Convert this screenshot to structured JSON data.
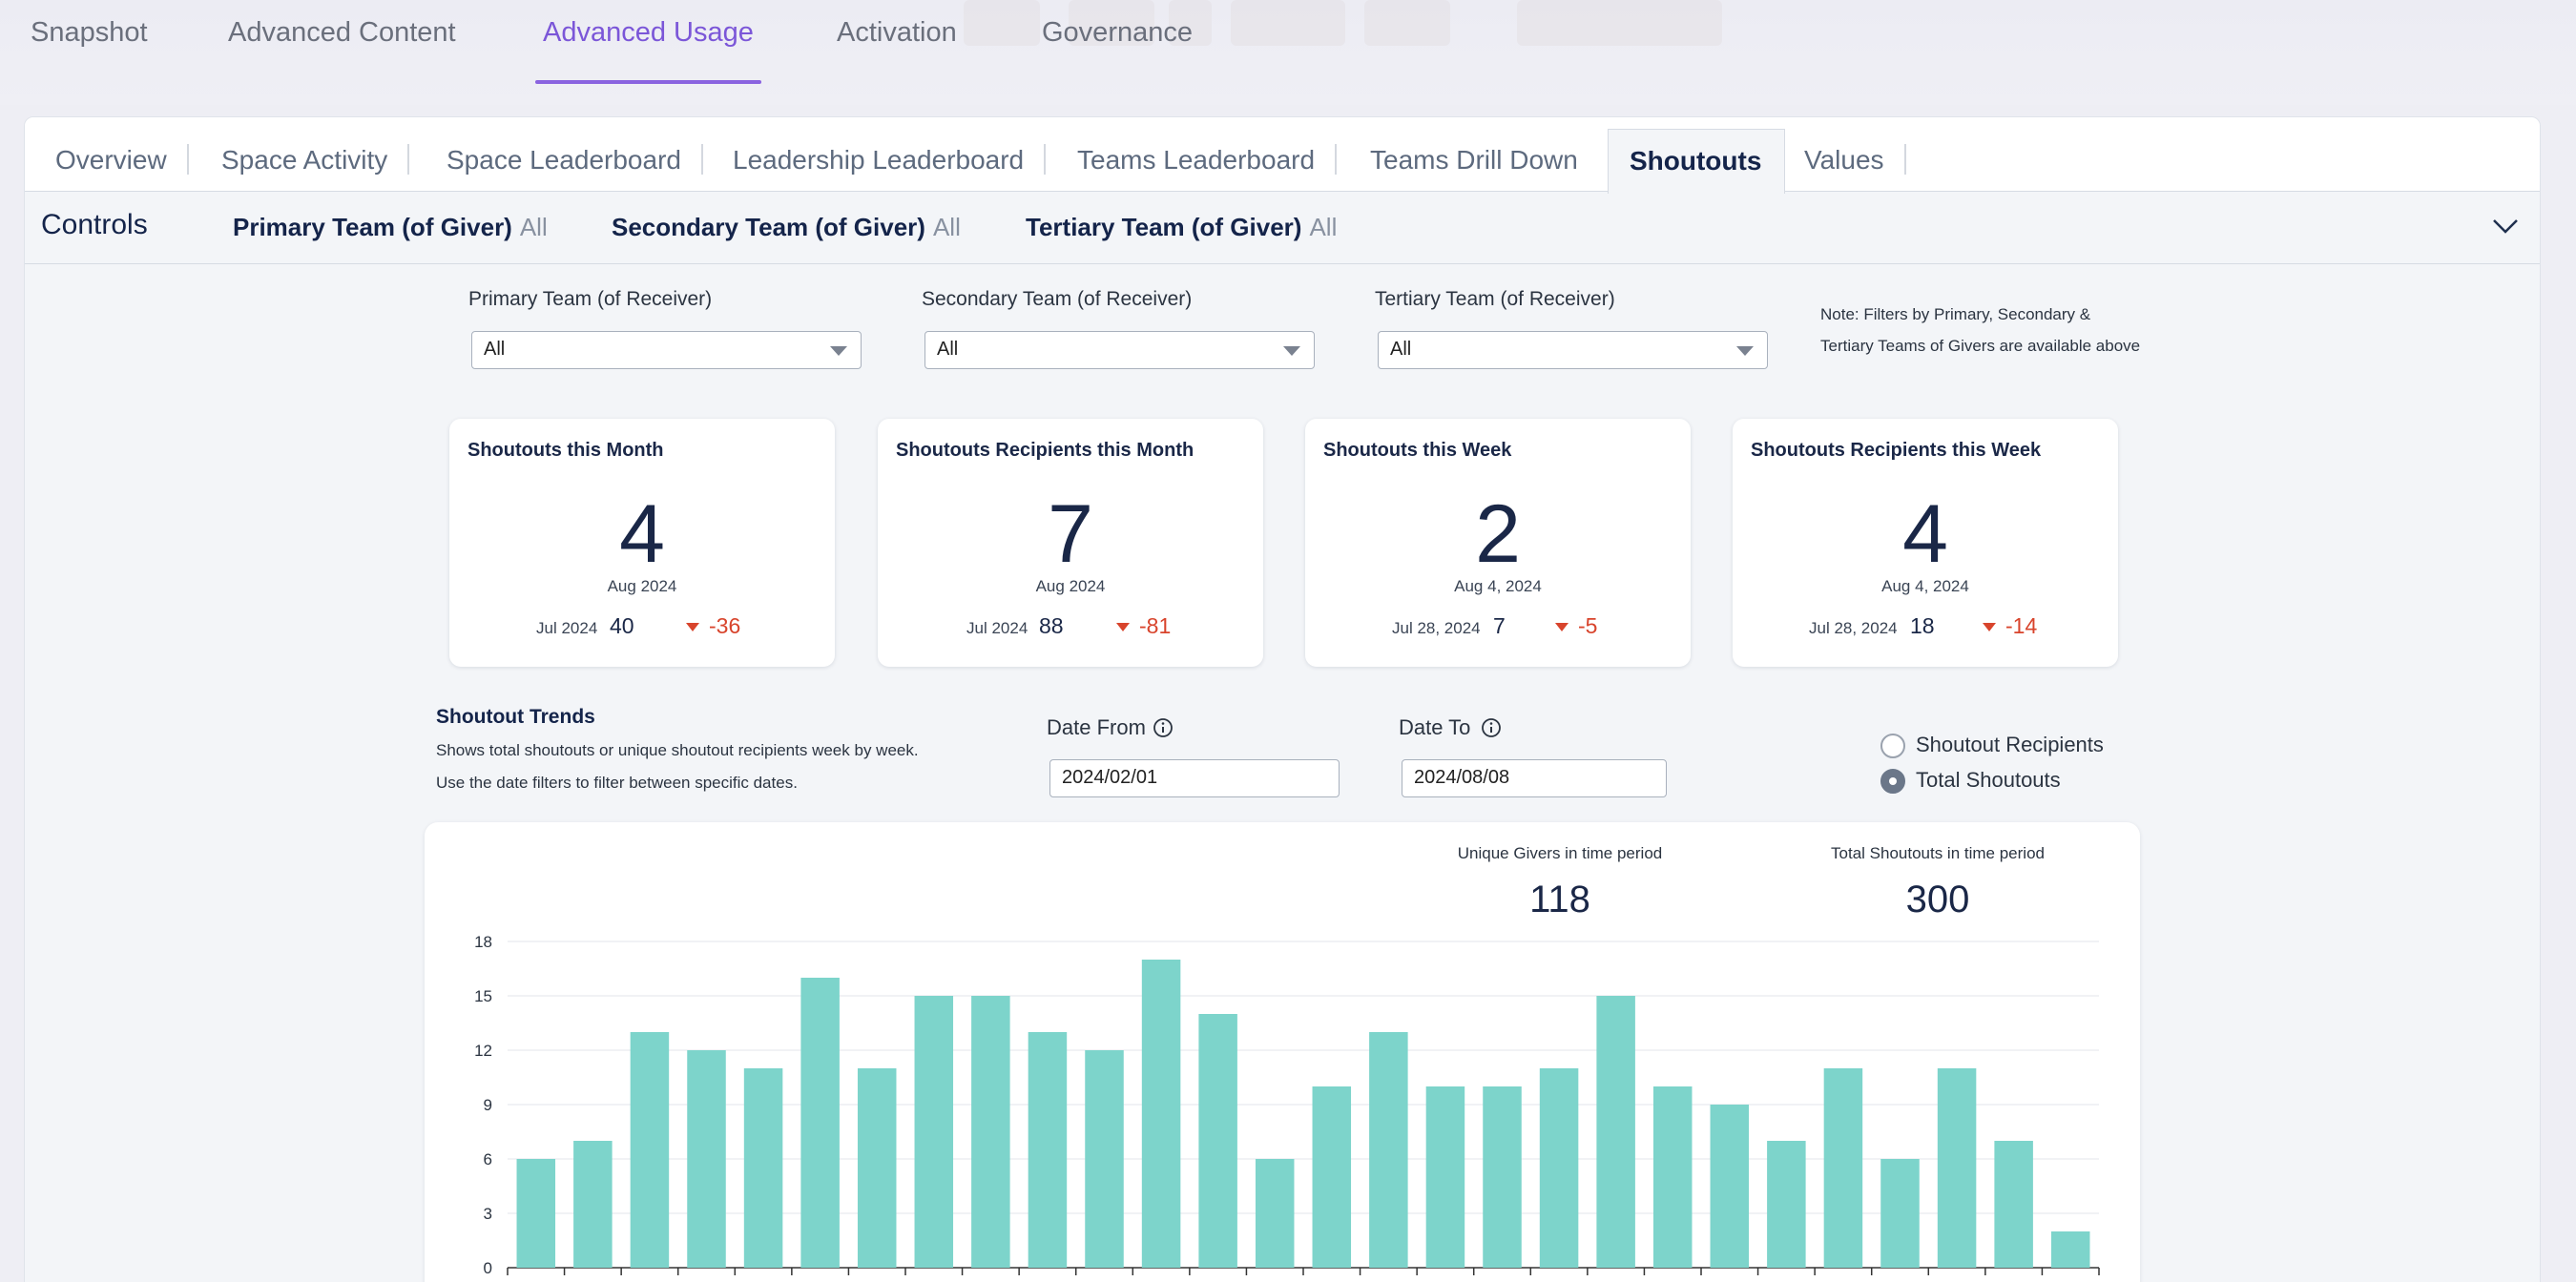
{
  "top_nav": {
    "tabs": [
      "Snapshot",
      "Advanced Content",
      "Advanced Usage",
      "Activation",
      "Governance"
    ],
    "active": "Advanced Usage"
  },
  "sub_tabs": {
    "tabs": [
      "Overview",
      "Space Activity",
      "Space Leaderboard",
      "Leadership Leaderboard",
      "Teams Leaderboard",
      "Teams Drill Down",
      "Shoutouts",
      "Values"
    ],
    "active": "Shoutouts"
  },
  "controls": {
    "title": "Controls",
    "filters": [
      {
        "label": "Primary Team (of Giver)",
        "value": "All"
      },
      {
        "label": "Secondary Team (of Giver)",
        "value": "All"
      },
      {
        "label": "Tertiary Team (of Giver)",
        "value": "All"
      }
    ]
  },
  "receiver_filters": [
    {
      "label": "Primary Team (of Receiver)",
      "value": "All"
    },
    {
      "label": "Secondary Team (of Receiver)",
      "value": "All"
    },
    {
      "label": "Tertiary Team (of Receiver)",
      "value": "All"
    }
  ],
  "note": {
    "line1": "Note: Filters by Primary, Secondary &",
    "line2": "Tertiary Teams of Givers are available above"
  },
  "kpis": [
    {
      "title": "Shoutouts this Month",
      "value": "4",
      "period": "Aug 2024",
      "prev_label": "Jul 2024",
      "prev_value": "40",
      "delta": "-36"
    },
    {
      "title": "Shoutouts Recipients this Month",
      "value": "7",
      "period": "Aug 2024",
      "prev_label": "Jul 2024",
      "prev_value": "88",
      "delta": "-81"
    },
    {
      "title": "Shoutouts this Week",
      "value": "2",
      "period": "Aug 4, 2024",
      "prev_label": "Jul 28, 2024",
      "prev_value": "7",
      "delta": "-5"
    },
    {
      "title": "Shoutouts Recipients this Week",
      "value": "4",
      "period": "Aug 4, 2024",
      "prev_label": "Jul 28, 2024",
      "prev_value": "18",
      "delta": "-14"
    }
  ],
  "trends": {
    "title": "Shoutout Trends",
    "desc_line1": "Shows total shoutouts or unique shoutout recipients week by week.",
    "desc_line2": "Use the date filters to filter between specific dates.",
    "date_from_label": "Date From",
    "date_from": "2024/02/01",
    "date_to_label": "Date To",
    "date_to": "2024/08/08",
    "radio_options": [
      "Shoutout Recipients",
      "Total Shoutouts"
    ],
    "radio_selected": "Total Shoutouts"
  },
  "summary_metrics": [
    {
      "label": "Unique Givers in time period",
      "value": "118"
    },
    {
      "label": "Total Shoutouts in time period",
      "value": "300"
    }
  ],
  "colors": {
    "accent": "#8a63e0",
    "bar": "#7dd4cb",
    "negative": "#d8442c",
    "navy": "#1a2747"
  },
  "chart_data": {
    "type": "bar",
    "title": "",
    "xlabel": "",
    "ylabel": "",
    "ylim": [
      0,
      18
    ],
    "y_ticks": [
      0,
      3,
      6,
      9,
      12,
      15,
      18
    ],
    "values": [
      6,
      7,
      13,
      12,
      11,
      16,
      11,
      15,
      15,
      13,
      12,
      17,
      14,
      6,
      10,
      13,
      10,
      10,
      11,
      15,
      10,
      9,
      7,
      11,
      6,
      11,
      7,
      2
    ],
    "grid": true
  }
}
